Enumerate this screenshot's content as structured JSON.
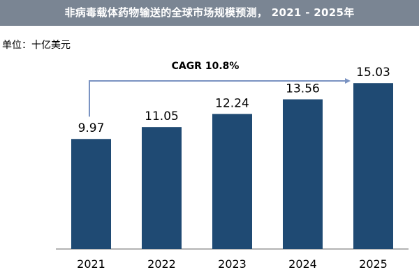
{
  "title": "非病毒载体药物输送的全球市场规模预测，  2021 - 2025年",
  "unit": "单位：十亿美元",
  "colors": {
    "banner": "#7a8593",
    "bar": "#1f4a73",
    "arrow": "#7a93c2",
    "axis": "#9a9a9a",
    "text": "#000000"
  },
  "chart_data": {
    "type": "bar",
    "title": "非病毒载体药物输送的全球市场规模预测，  2021 - 2025年",
    "unit": "单位：十亿美元",
    "categories": [
      "2021",
      "2022",
      "2023",
      "2024",
      "2025"
    ],
    "values": [
      9.97,
      11.05,
      12.24,
      13.56,
      15.03
    ],
    "data_labels": [
      "9.97",
      "11.05",
      "12.24",
      "13.56",
      "15.03"
    ],
    "ylim": [
      0,
      15.8
    ],
    "annotation": {
      "text": "CAGR 10.8%",
      "from": "2021",
      "to": "2025"
    },
    "grid": false,
    "legend": "none"
  }
}
